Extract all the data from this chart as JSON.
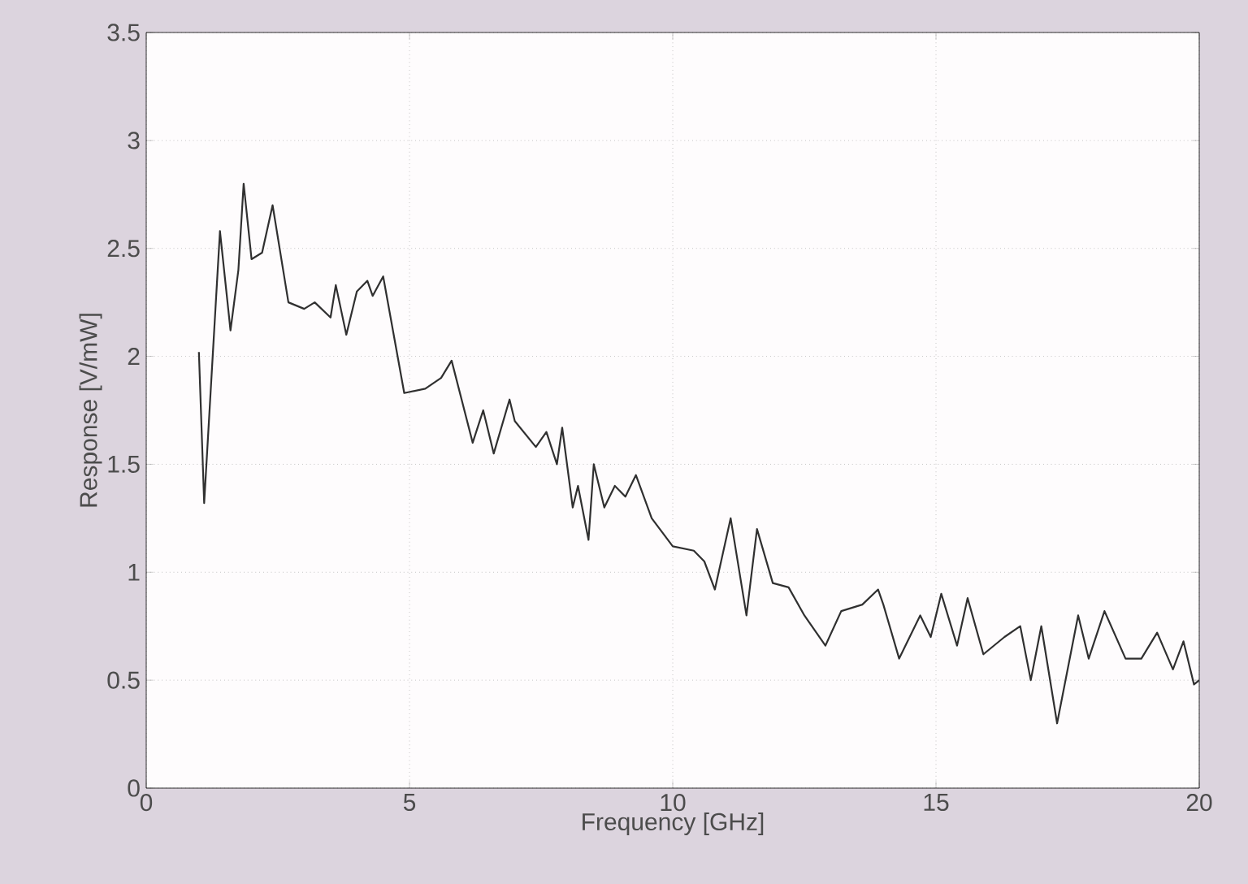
{
  "chart_data": {
    "type": "line",
    "xlabel": "Frequency [GHz]",
    "ylabel": "Response [V/mW]",
    "xlim": [
      0,
      20
    ],
    "ylim": [
      0,
      3.5
    ],
    "xticks": [
      0,
      5,
      10,
      15,
      20
    ],
    "yticks": [
      0,
      0.5,
      1,
      1.5,
      2,
      2.5,
      3,
      3.5
    ],
    "grid": true,
    "series": [
      {
        "color": "#303030",
        "x": [
          1.0,
          1.1,
          1.4,
          1.6,
          1.75,
          1.85,
          2.0,
          2.2,
          2.4,
          2.7,
          3.0,
          3.2,
          3.5,
          3.6,
          3.8,
          4.0,
          4.2,
          4.3,
          4.5,
          4.7,
          4.9,
          5.3,
          5.6,
          5.8,
          6.2,
          6.4,
          6.6,
          6.9,
          7.0,
          7.4,
          7.6,
          7.8,
          7.9,
          8.1,
          8.2,
          8.4,
          8.5,
          8.7,
          8.9,
          9.1,
          9.3,
          9.6,
          10.0,
          10.4,
          10.6,
          10.8,
          11.1,
          11.4,
          11.6,
          11.9,
          12.2,
          12.5,
          12.9,
          13.2,
          13.6,
          13.9,
          14.0,
          14.3,
          14.7,
          14.9,
          15.1,
          15.4,
          15.6,
          15.9,
          16.3,
          16.6,
          16.8,
          17.0,
          17.3,
          17.7,
          17.9,
          18.2,
          18.6,
          18.9,
          19.2,
          19.5,
          19.7,
          19.9,
          20.0
        ],
        "values": [
          2.02,
          1.32,
          2.58,
          2.12,
          2.4,
          2.8,
          2.45,
          2.48,
          2.7,
          2.25,
          2.22,
          2.25,
          2.18,
          2.33,
          2.1,
          2.3,
          2.35,
          2.28,
          2.37,
          2.1,
          1.83,
          1.85,
          1.9,
          1.98,
          1.6,
          1.75,
          1.55,
          1.8,
          1.7,
          1.58,
          1.65,
          1.5,
          1.67,
          1.3,
          1.4,
          1.15,
          1.5,
          1.3,
          1.4,
          1.35,
          1.45,
          1.25,
          1.12,
          1.1,
          1.05,
          0.92,
          1.25,
          0.8,
          1.2,
          0.95,
          0.93,
          0.8,
          0.66,
          0.82,
          0.85,
          0.92,
          0.85,
          0.6,
          0.8,
          0.7,
          0.9,
          0.66,
          0.88,
          0.62,
          0.7,
          0.75,
          0.5,
          0.75,
          0.3,
          0.8,
          0.6,
          0.82,
          0.6,
          0.6,
          0.72,
          0.55,
          0.68,
          0.48,
          0.5
        ]
      }
    ]
  }
}
